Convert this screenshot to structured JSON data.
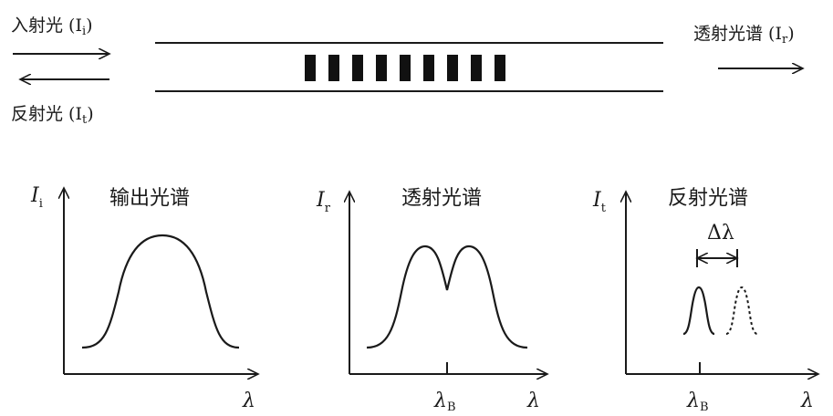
{
  "top": {
    "incident_label": "入射光 (I",
    "incident_sub": "i",
    "reflected_label": "反射光 (I",
    "reflected_sub": "t",
    "transmitted_label": "透射光谱 (I",
    "transmitted_sub": "r",
    "close_paren": ")"
  },
  "plots": [
    {
      "title": "输出光谱",
      "y_axis": "I",
      "y_sub": "i",
      "x_axis": "λ"
    },
    {
      "title": "透射光谱",
      "y_axis": "I",
      "y_sub": "r",
      "x_axis": "λ",
      "marker": "λ",
      "marker_sub": "B"
    },
    {
      "title": "反射光谱",
      "y_axis": "I",
      "y_sub": "t",
      "x_axis": "λ",
      "marker": "λ",
      "marker_sub": "B",
      "shift_label": "Δλ"
    }
  ],
  "grating": {
    "bar_count": 9
  }
}
